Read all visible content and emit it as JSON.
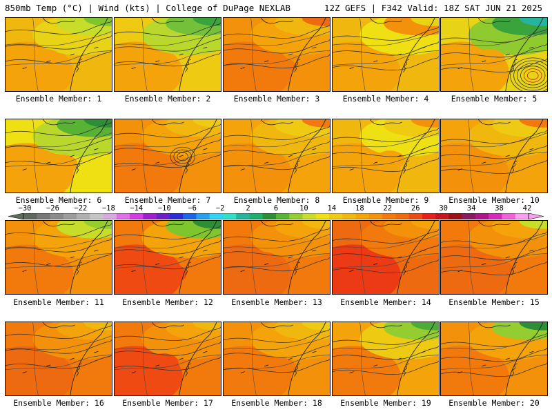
{
  "header": {
    "left": "850mb Temp (°C) | Wind (kts) | College of DuPage NEXLAB",
    "right": "12Z GEFS | F342 Valid: 18Z SAT JUN 21 2025"
  },
  "panels": [
    {
      "label": "Ensemble Member: 1",
      "palette": [
        "#f5a30a",
        "#f0b80e",
        "#e8d317",
        "#c7dd2a",
        "#7fc52e"
      ],
      "highs": [],
      "lows": []
    },
    {
      "label": "Ensemble Member: 2",
      "palette": [
        "#f5a30a",
        "#eecb12",
        "#b9d82b",
        "#74c03a",
        "#3aa33b"
      ],
      "highs": [],
      "lows": []
    },
    {
      "label": "Ensemble Member: 3",
      "palette": [
        "#f27a0c",
        "#f3920a",
        "#f5a30a",
        "#f0b80e",
        "#ee6a10"
      ],
      "highs": [],
      "lows": []
    },
    {
      "label": "Ensemble Member: 4",
      "palette": [
        "#f5a30a",
        "#f0b80e",
        "#eee012",
        "#f3920a",
        "#e8d317"
      ],
      "highs": [],
      "lows": []
    },
    {
      "label": "Ensemble Member: 5",
      "palette": [
        "#f5a30a",
        "#e8d317",
        "#8fcb2f",
        "#3aa33b",
        "#27b49e"
      ],
      "highs": [],
      "lows": [
        "L"
      ]
    },
    {
      "label": "Ensemble Member: 6",
      "palette": [
        "#f5a30a",
        "#eee012",
        "#b9d82b",
        "#58b234",
        "#2e8e36"
      ],
      "highs": [],
      "lows": []
    },
    {
      "label": "Ensemble Member: 7",
      "palette": [
        "#f27a0c",
        "#f3920a",
        "#f5a30a",
        "#f0b80e",
        "#eecb12"
      ],
      "highs": [],
      "lows": [
        "L"
      ]
    },
    {
      "label": "Ensemble Member: 8",
      "palette": [
        "#f3920a",
        "#f5a30a",
        "#f0b80e",
        "#eecb12",
        "#f27a0c"
      ],
      "highs": [],
      "lows": []
    },
    {
      "label": "Ensemble Member: 9",
      "palette": [
        "#f5a30a",
        "#f0b80e",
        "#eee012",
        "#eecb12",
        "#f3920a"
      ],
      "highs": [],
      "lows": []
    },
    {
      "label": "Ensemble Member: 10",
      "palette": [
        "#f3920a",
        "#f5a30a",
        "#f0b80e",
        "#eecb12",
        "#f27a0c"
      ],
      "highs": [],
      "lows": []
    },
    {
      "label": "Ensemble Member: 11",
      "palette": [
        "#f27a0c",
        "#f3920a",
        "#f5a30a",
        "#c7dd2a",
        "#94cd2f"
      ],
      "highs": [],
      "lows": []
    },
    {
      "label": "Ensemble Member: 12",
      "palette": [
        "#ee4a12",
        "#f27a0c",
        "#f5a30a",
        "#7fc52e",
        "#2e8e36"
      ],
      "highs": [],
      "lows": []
    },
    {
      "label": "Ensemble Member: 13",
      "palette": [
        "#ee6a10",
        "#f27a0c",
        "#f3920a",
        "#f5a30a",
        "#f0b80e"
      ],
      "highs": [],
      "lows": []
    },
    {
      "label": "Ensemble Member: 14",
      "palette": [
        "#ec3a14",
        "#ee6a10",
        "#f27a0c",
        "#f3920a",
        "#f5a30a"
      ],
      "highs": [],
      "lows": []
    },
    {
      "label": "Ensemble Member: 15",
      "palette": [
        "#ee6a10",
        "#f27a0c",
        "#f3920a",
        "#f5a30a",
        "#c7dd2a"
      ],
      "highs": [],
      "lows": []
    },
    {
      "label": "Ensemble Member: 16",
      "palette": [
        "#ee6a10",
        "#f27a0c",
        "#f3920a",
        "#f5a30a",
        "#f0b80e"
      ],
      "highs": [],
      "lows": []
    },
    {
      "label": "Ensemble Member: 17",
      "palette": [
        "#ee4a12",
        "#f27a0c",
        "#f3920a",
        "#f5a30a",
        "#f0b80e"
      ],
      "highs": [],
      "lows": []
    },
    {
      "label": "Ensemble Member: 18",
      "palette": [
        "#f27a0c",
        "#f3920a",
        "#f5a30a",
        "#f0b80e",
        "#eecb12"
      ],
      "highs": [],
      "lows": []
    },
    {
      "label": "Ensemble Member: 19",
      "palette": [
        "#f27a0c",
        "#f5a30a",
        "#eecb12",
        "#94cd2f",
        "#4eab37"
      ],
      "highs": [],
      "lows": []
    },
    {
      "label": "Ensemble Member: 20",
      "palette": [
        "#f27a0c",
        "#f3920a",
        "#f5a30a",
        "#94cd2f",
        "#2e8e36"
      ],
      "highs": [],
      "lows": []
    }
  ],
  "colorbar": {
    "labels": [
      "−30",
      "−26",
      "−22",
      "−18",
      "−14",
      "−10",
      "−6",
      "−2",
      "2",
      "6",
      "10",
      "14",
      "18",
      "22",
      "26",
      "30",
      "34",
      "38",
      "42"
    ],
    "colors": [
      "#5e6a5e",
      "#777777",
      "#8a8a8a",
      "#9d9d9d",
      "#b0b0b0",
      "#c5c5c5",
      "#d8a9de",
      "#e06ee6",
      "#d23ce0",
      "#a020d0",
      "#6d1fc8",
      "#2b2bd6",
      "#1c64e8",
      "#27a0f0",
      "#31d4f2",
      "#2ee0c5",
      "#27b49e",
      "#1fae6e",
      "#2e8e36",
      "#58b234",
      "#94cd2f",
      "#c7dd2a",
      "#eee012",
      "#eecb12",
      "#f0b80e",
      "#f5a30a",
      "#f3920a",
      "#f27a0c",
      "#ee6a10",
      "#ec4a14",
      "#e8201c",
      "#c8141e",
      "#9c1018",
      "#8a1a5e",
      "#b0168c",
      "#d82ab8",
      "#f060d8",
      "#f7a0ec"
    ]
  }
}
